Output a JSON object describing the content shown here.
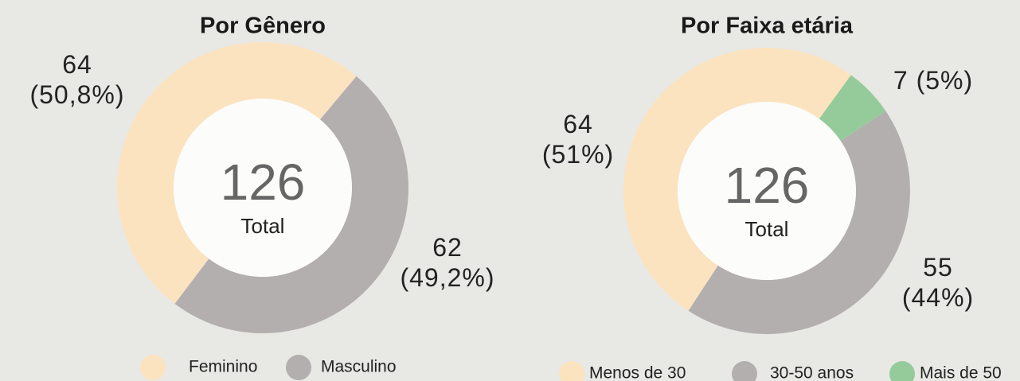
{
  "chart_data": [
    {
      "type": "donut",
      "title": "Por Gênero",
      "total": 126,
      "total_label": "Total",
      "categories": [
        "Feminino",
        "Masculino"
      ],
      "values": [
        64,
        62
      ],
      "value_labels": [
        "64\n(50,8%)",
        "62\n(49,2%)"
      ],
      "colors": [
        "#fce3c0",
        "#b3afaf"
      ]
    },
    {
      "type": "donut",
      "title": "Por Faixa etária",
      "total": 126,
      "total_label": "Total",
      "categories": [
        "Menos de 30",
        "30-50 anos",
        "Mais de 50"
      ],
      "values": [
        64,
        55,
        7
      ],
      "value_labels": [
        "64\n(51%)",
        "55\n(44%)",
        "7 (5%)"
      ],
      "colors": [
        "#fce3c0",
        "#b3afaf",
        "#95cb9a"
      ]
    }
  ]
}
